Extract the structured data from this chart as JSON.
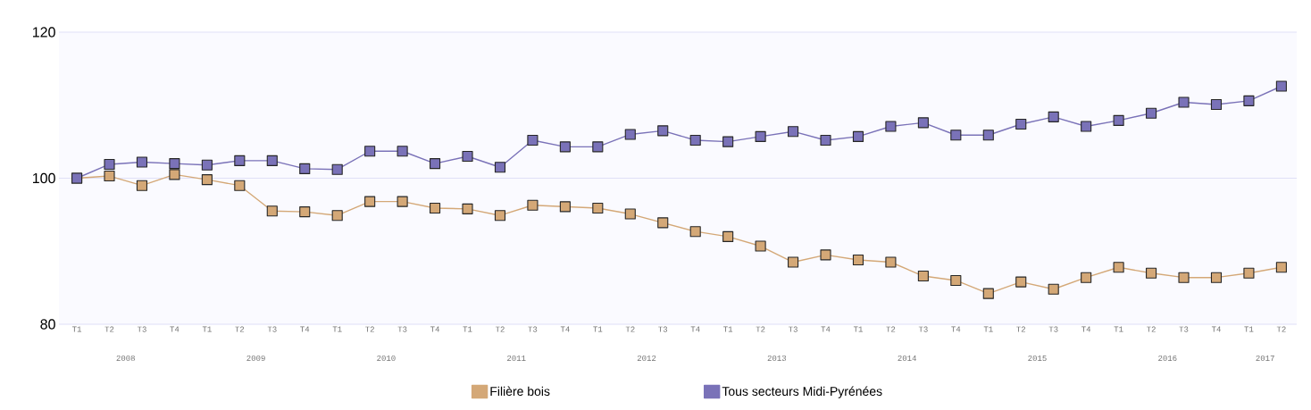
{
  "chart_data": {
    "type": "line",
    "categories": [
      "T1",
      "T2",
      "T3",
      "T4",
      "T1",
      "T2",
      "T3",
      "T4",
      "T1",
      "T2",
      "T3",
      "T4",
      "T1",
      "T2",
      "T3",
      "T4",
      "T1",
      "T2",
      "T3",
      "T4",
      "T1",
      "T2",
      "T3",
      "T4",
      "T1",
      "T2",
      "T3",
      "T4",
      "T1",
      "T2",
      "T3",
      "T4",
      "T1",
      "T2",
      "T3",
      "T4",
      "T1",
      "T2"
    ],
    "series": [
      {
        "name": "Filière bois",
        "color": "#d4a877",
        "values": [
          100.0,
          100.3,
          99.0,
          100.5,
          99.8,
          99.0,
          95.5,
          95.4,
          94.9,
          96.8,
          96.8,
          95.9,
          95.8,
          94.9,
          96.3,
          96.1,
          95.9,
          95.1,
          93.9,
          92.7,
          92.0,
          90.7,
          88.5,
          89.5,
          88.8,
          88.5,
          86.6,
          86.0,
          84.2,
          85.8,
          84.8,
          86.4,
          87.8,
          87.0,
          86.4,
          86.4,
          87.0,
          87.8
        ]
      },
      {
        "name": "Tous secteurs Midi-Pyrénées",
        "color": "#7a72b8",
        "values": [
          100.0,
          101.9,
          102.2,
          102.0,
          101.8,
          102.4,
          102.4,
          101.3,
          101.2,
          103.7,
          103.7,
          102.0,
          103.0,
          101.5,
          105.2,
          104.3,
          104.3,
          106.0,
          106.5,
          105.2,
          105.0,
          105.7,
          106.4,
          105.2,
          105.7,
          107.1,
          107.6,
          105.9,
          105.9,
          107.4,
          108.4,
          107.1,
          107.9,
          108.9,
          110.4,
          110.1,
          110.6,
          112.6
        ]
      }
    ],
    "annotations": [
      "2008",
      "2009",
      "2010",
      "2011",
      "2012",
      "2013",
      "2014",
      "2015",
      "2016",
      "2017"
    ],
    "ylim": [
      80,
      120
    ],
    "yticks": [
      80,
      100,
      120
    ],
    "grid": "y",
    "legend": "bottom",
    "marker": "square",
    "line_style": "solid"
  }
}
